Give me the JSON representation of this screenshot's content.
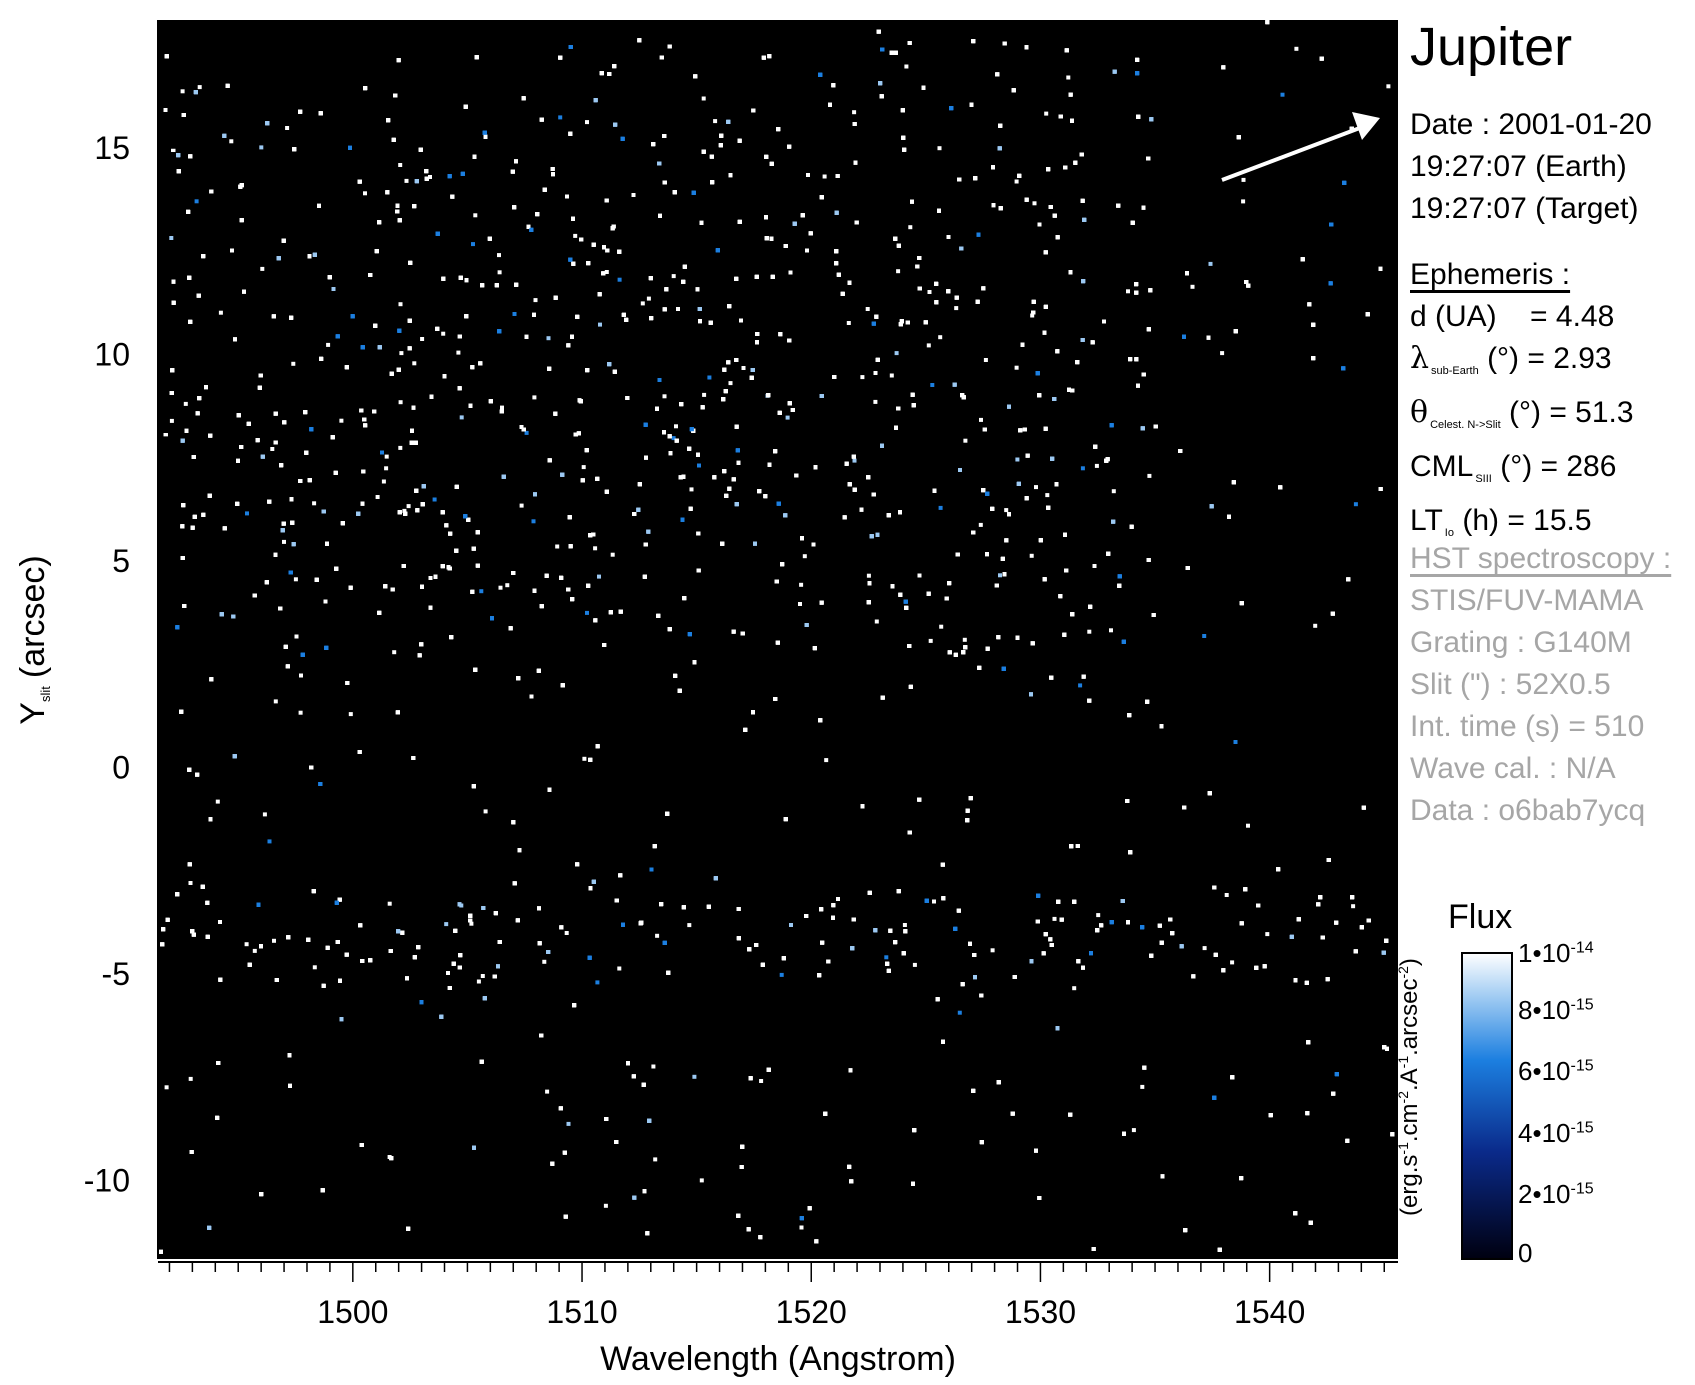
{
  "chart_data": {
    "type": "heatmap",
    "xlabel": "Wavelength (Angstrom)",
    "ylabel_main": "Y",
    "ylabel_sub": "slit",
    "ylabel_unit": "(arcsec)",
    "xlim": [
      1491.5,
      1545.6
    ],
    "ylim": [
      -11.9,
      18.1
    ],
    "x_ticks": [
      1500,
      1510,
      1520,
      1530,
      1540
    ],
    "y_ticks": [
      15,
      10,
      5,
      0,
      -5,
      -10
    ],
    "bands": [
      {
        "y_center": 9.5,
        "y_halfwidth": 6.5,
        "x_start": 1492,
        "x_end": 1535,
        "relative_density": 0.55
      },
      {
        "y_center": -4.0,
        "y_halfwidth": 1.0,
        "x_start": 1491.5,
        "x_end": 1545.6,
        "relative_density": 0.75
      }
    ],
    "colorbar": {
      "title": "Flux",
      "label": "(erg.s-1.cm-2.A-1.arcsec-2)",
      "min": 0,
      "max": 1e-14,
      "ticks": [
        "0",
        "2•10-15",
        "4•10-15",
        "6•10-15",
        "8•10-15",
        "1•10-14"
      ]
    },
    "colors": {
      "background": "#000000",
      "low": "#00003c",
      "mid": "#1c6fd6",
      "high": "#ffffff"
    }
  },
  "info": {
    "target": "Jupiter",
    "date_line": "Date : 2001-01-20",
    "time_earth": "19:27:07 (Earth)",
    "time_target": "19:27:07 (Target)",
    "ephemeris_header": "Ephemeris :",
    "d_label": "d (UA)",
    "d_value": "= 4.48",
    "lambda_sym": "λ",
    "lambda_sub": "sub-Earth",
    "lambda_value": "(°)  = 2.93",
    "theta_sym": "θ",
    "theta_sub": "Celest. N->Slit",
    "theta_value": "(°) = 51.3",
    "cml_label": "CML",
    "cml_sub": "SIII",
    "cml_value": "(°) = 286",
    "lt_label": "LT",
    "lt_sub": "Io",
    "lt_value": "(h) = 15.5",
    "hst_header": "HST spectroscopy :",
    "instrument": "STIS/FUV-MAMA",
    "grating": "Grating : G140M",
    "slit": "Slit (\") : 52X0.5",
    "int_time": "Int. time (s) = 510",
    "wave_cal": "Wave cal. : N/A",
    "data_id": "Data : o6bab7ycq"
  }
}
